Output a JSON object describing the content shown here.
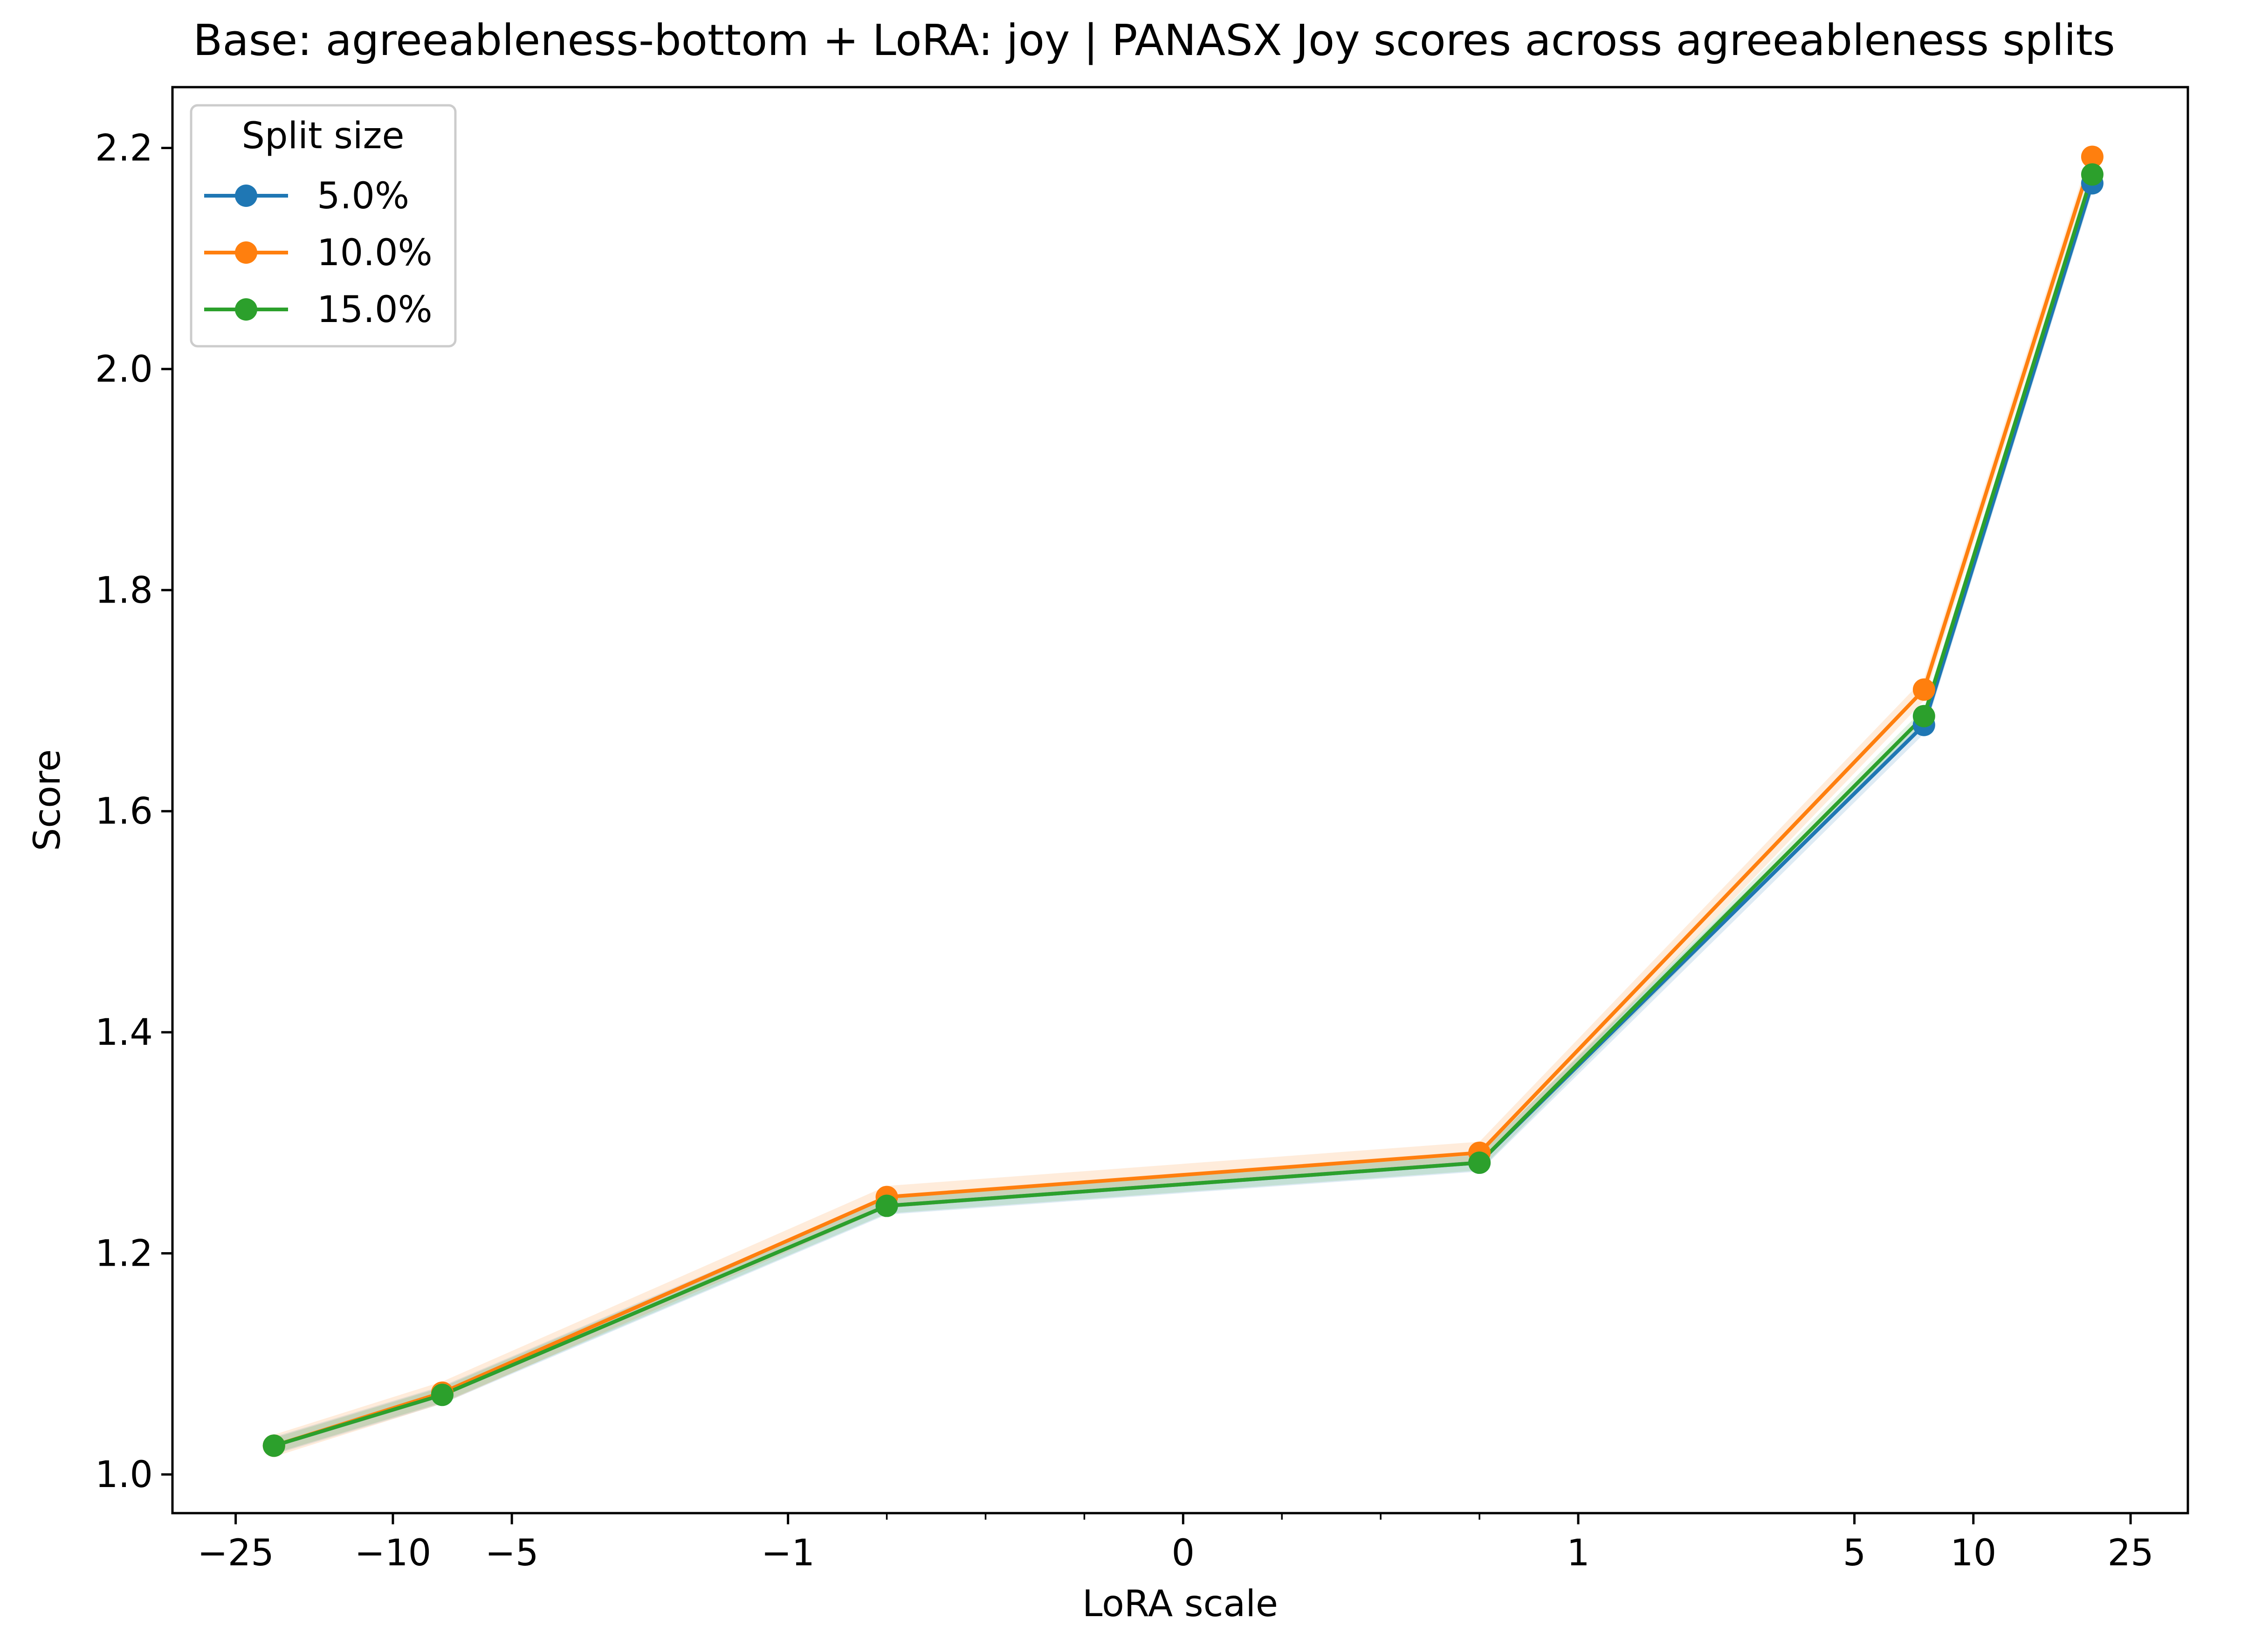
{
  "chart_data": {
    "type": "line",
    "title": "Base: agreeableness-bottom + LoRA: joy | PANASX Joy scores across agreeableness splits",
    "xlabel": "LoRA scale",
    "ylabel": "Score",
    "x_scale": "symlog",
    "x_ticks": [
      -25,
      -10,
      -5,
      -1,
      0,
      1,
      5,
      10,
      25
    ],
    "x_tick_labels": [
      "−25",
      "−10",
      "−5",
      "−1",
      "0",
      "1",
      "5",
      "10",
      "25"
    ],
    "y_ticks": [
      1.0,
      1.2,
      1.4,
      1.6,
      1.8,
      2.0,
      2.2
    ],
    "y_tick_labels": [
      "1.0",
      "1.2",
      "1.4",
      "1.6",
      "1.8",
      "2.0",
      "2.2"
    ],
    "ylim": [
      0.965,
      2.255
    ],
    "legend": {
      "title": "Split size",
      "position": "top-left"
    },
    "grid": false,
    "x_points": [
      -20,
      -7.5,
      -0.75,
      0.75,
      7.5,
      20
    ],
    "series": [
      {
        "name": "5.0%",
        "color": "#1f77b4",
        "values": [
          1.026,
          1.072,
          1.243,
          1.282,
          1.678,
          2.168
        ],
        "band": 0.008
      },
      {
        "name": "10.0%",
        "color": "#ff7f0e",
        "values": [
          1.026,
          1.074,
          1.251,
          1.291,
          1.71,
          2.192
        ],
        "band": 0.01
      },
      {
        "name": "15.0%",
        "color": "#2ca02c",
        "values": [
          1.026,
          1.072,
          1.243,
          1.282,
          1.686,
          2.176
        ],
        "band": 0.007
      }
    ]
  }
}
